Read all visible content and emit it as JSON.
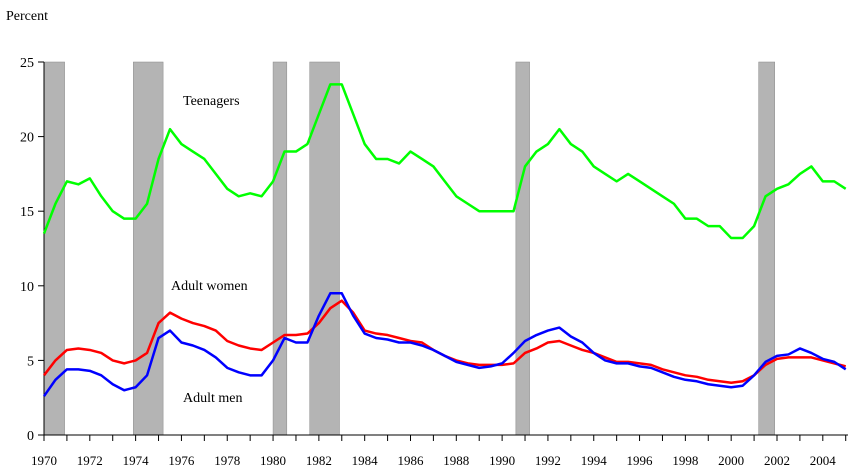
{
  "chart_data": {
    "type": "line",
    "ylabel": "Percent",
    "xlim": [
      1970,
      2005.1
    ],
    "ylim": [
      0,
      25
    ],
    "yticks": [
      0,
      5,
      10,
      15,
      20,
      25
    ],
    "xticks": [
      1970,
      1972,
      1974,
      1976,
      1978,
      1980,
      1982,
      1984,
      1986,
      1988,
      1990,
      1992,
      1994,
      1996,
      1998,
      2000,
      2002,
      2004
    ],
    "xminorticks": [
      1971,
      1973,
      1975,
      1977,
      1979,
      1981,
      1983,
      1985,
      1987,
      1989,
      1991,
      1993,
      1995,
      1997,
      1999,
      2001,
      2003,
      2005
    ],
    "recessions": [
      [
        1970.0,
        1970.9
      ],
      [
        1973.9,
        1975.2
      ],
      [
        1980.0,
        1980.6
      ],
      [
        1981.6,
        1982.9
      ],
      [
        1990.6,
        1991.2
      ],
      [
        2001.2,
        2001.9
      ]
    ],
    "recession_color": "#b4b4b4",
    "x": [
      1970,
      1970.5,
      1971,
      1971.5,
      1972,
      1972.5,
      1973,
      1973.5,
      1974,
      1974.5,
      1975,
      1975.5,
      1976,
      1976.5,
      1977,
      1977.5,
      1978,
      1978.5,
      1979,
      1979.5,
      1980,
      1980.5,
      1981,
      1981.5,
      1982,
      1982.5,
      1983,
      1983.5,
      1984,
      1984.5,
      1985,
      1985.5,
      1986,
      1986.5,
      1987,
      1987.5,
      1988,
      1988.5,
      1989,
      1989.5,
      1990,
      1990.5,
      1991,
      1991.5,
      1992,
      1992.5,
      1993,
      1993.5,
      1994,
      1994.5,
      1995,
      1995.5,
      1996,
      1996.5,
      1997,
      1997.5,
      1998,
      1998.5,
      1999,
      1999.5,
      2000,
      2000.5,
      2001,
      2001.5,
      2002,
      2002.5,
      2003,
      2003.5,
      2004,
      2004.5,
      2005
    ],
    "series": [
      {
        "name": "Teenagers",
        "color": "#00ff00",
        "values": [
          13.5,
          15.5,
          17,
          16.8,
          17.2,
          16,
          15,
          14.5,
          14.5,
          15.5,
          18.5,
          20.5,
          19.5,
          19,
          18.5,
          17.5,
          16.5,
          16,
          16.2,
          16,
          17,
          19,
          19,
          19.5,
          21.5,
          23.5,
          23.5,
          21.5,
          19.5,
          18.5,
          18.5,
          18.2,
          19,
          18.5,
          18,
          17,
          16,
          15.5,
          15,
          15,
          15,
          15,
          18,
          19,
          19.5,
          20.5,
          19.5,
          19,
          18,
          17.5,
          17,
          17.5,
          17,
          16.5,
          16,
          15.5,
          14.5,
          14.5,
          14,
          14,
          13.2,
          13.2,
          14,
          16,
          16.5,
          16.8,
          17.5,
          18,
          17,
          17,
          16.5
        ]
      },
      {
        "name": "Adult women",
        "color": "#ff0000",
        "values": [
          4.0,
          5.0,
          5.7,
          5.8,
          5.7,
          5.5,
          5.0,
          4.8,
          5.0,
          5.5,
          7.5,
          8.2,
          7.8,
          7.5,
          7.3,
          7.0,
          6.3,
          6.0,
          5.8,
          5.7,
          6.2,
          6.7,
          6.7,
          6.8,
          7.5,
          8.5,
          9.0,
          8.2,
          7.0,
          6.8,
          6.7,
          6.5,
          6.3,
          6.2,
          5.7,
          5.3,
          5.0,
          4.8,
          4.7,
          4.7,
          4.7,
          4.8,
          5.5,
          5.8,
          6.2,
          6.3,
          6.0,
          5.7,
          5.5,
          5.2,
          4.9,
          4.9,
          4.8,
          4.7,
          4.4,
          4.2,
          4.0,
          3.9,
          3.7,
          3.6,
          3.5,
          3.6,
          4.0,
          4.7,
          5.1,
          5.2,
          5.2,
          5.2,
          5.0,
          4.8,
          4.6
        ]
      },
      {
        "name": "Adult men",
        "color": "#0000ff",
        "values": [
          2.6,
          3.7,
          4.4,
          4.4,
          4.3,
          4.0,
          3.4,
          3.0,
          3.2,
          4.0,
          6.5,
          7.0,
          6.2,
          6.0,
          5.7,
          5.2,
          4.5,
          4.2,
          4.0,
          4.0,
          5.0,
          6.5,
          6.2,
          6.2,
          8.0,
          9.5,
          9.5,
          8.0,
          6.8,
          6.5,
          6.4,
          6.2,
          6.2,
          6.0,
          5.7,
          5.3,
          4.9,
          4.7,
          4.5,
          4.6,
          4.8,
          5.5,
          6.3,
          6.7,
          7.0,
          7.2,
          6.6,
          6.2,
          5.5,
          5.0,
          4.8,
          4.8,
          4.6,
          4.5,
          4.2,
          3.9,
          3.7,
          3.6,
          3.4,
          3.3,
          3.2,
          3.3,
          4.0,
          4.9,
          5.3,
          5.4,
          5.8,
          5.5,
          5.1,
          4.9,
          4.4
        ]
      }
    ]
  }
}
